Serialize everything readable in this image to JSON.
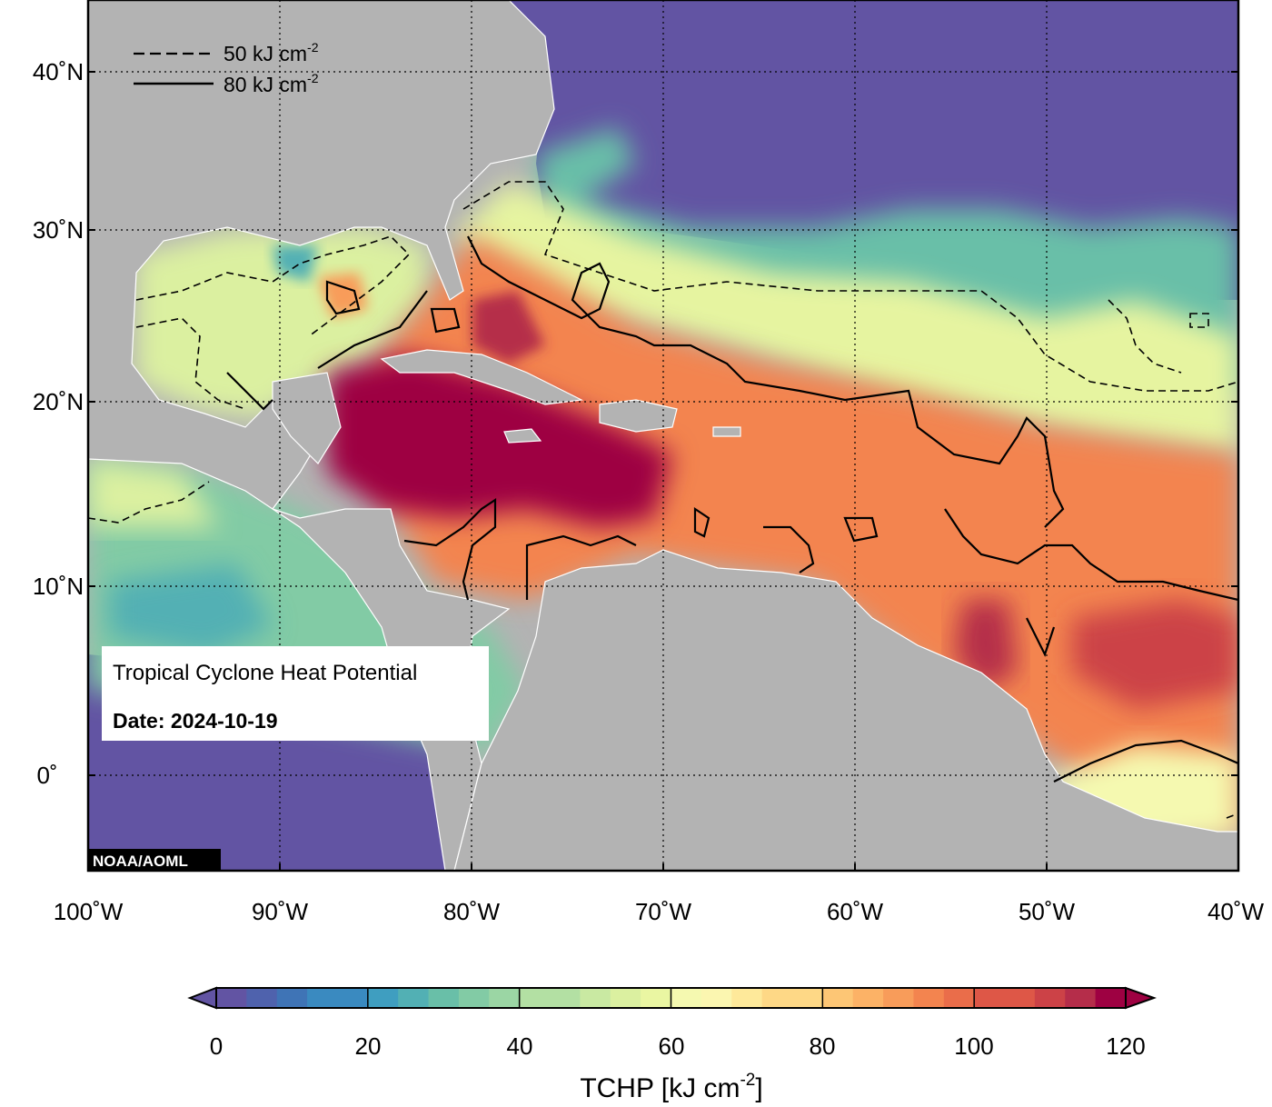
{
  "map": {
    "lon_range": [
      -100,
      -40
    ],
    "lat_range": [
      -5,
      44
    ],
    "projection": "mercator",
    "grid": true,
    "lon_labels": [
      "100˚W",
      "90˚W",
      "80˚W",
      "70˚W",
      "60˚W",
      "50˚W",
      "40˚W"
    ],
    "lat_labels": [
      "40˚N",
      "30˚N",
      "20˚N",
      "10˚N",
      "0˚"
    ],
    "land_color": "#b3b3b3",
    "coastline_color": "#ffffff"
  },
  "contour_legend": {
    "dashed": {
      "value": "50",
      "unit": "kJ cm",
      "exp": "-2"
    },
    "solid": {
      "value": "80",
      "unit": "kJ cm",
      "exp": "-2"
    },
    "placement": "top-left"
  },
  "info_box": {
    "title": "Tropical Cyclone Heat Potential",
    "date_label": "Date: 2024-10-19"
  },
  "credit": "NOAA/AOML",
  "colorbar": {
    "min": 0,
    "max": 120,
    "step": 4,
    "labels": [
      "0",
      "20",
      "40",
      "60",
      "80",
      "100",
      "120"
    ],
    "title_main": "TCHP [kJ cm",
    "title_exp": "-2",
    "title_end": "]",
    "colors": [
      "#6254a3",
      "#4f62ad",
      "#3f74b6",
      "#3a8ac0",
      "#3f9ec0",
      "#52b0b4",
      "#69bfa8",
      "#82cba5",
      "#9bd6a4",
      "#b3e0a3",
      "#c9e9a2",
      "#dbf0a0",
      "#eaf6a2",
      "#f5f9b0",
      "#fbf6b0",
      "#fee99a",
      "#fed886",
      "#fdc675",
      "#fcb266",
      "#f89c5a",
      "#f3844f",
      "#ea6d4a",
      "#de5747",
      "#cc4247",
      "#b52d4a",
      "#9e0142"
    ]
  }
}
